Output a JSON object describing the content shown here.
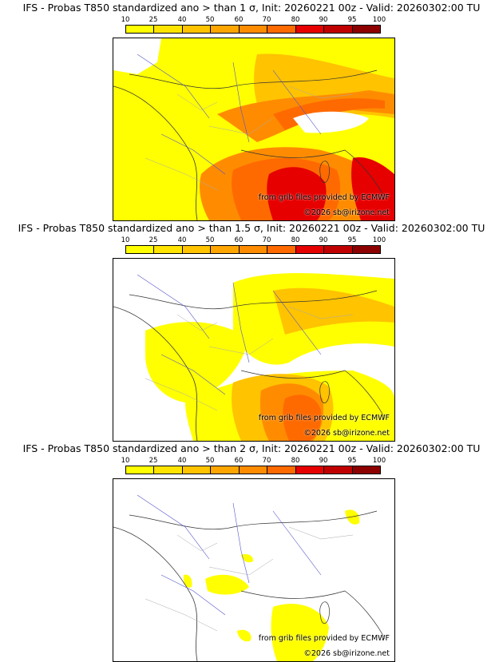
{
  "legend": {
    "ticks": [
      "10",
      "25",
      "40",
      "50",
      "60",
      "70",
      "80",
      "90",
      "95",
      "100"
    ],
    "colors": [
      "#ffff00",
      "#ffe400",
      "#ffc300",
      "#ffa500",
      "#ff8c00",
      "#ff6a00",
      "#e60000",
      "#c00000",
      "#8c0000"
    ]
  },
  "credit": {
    "grib": "from grib files provided by ECMWF",
    "copyright": "©2026 sb@irizone.net"
  },
  "panels": [
    {
      "title": "IFS - Probas T850  standardized ano > than 1 σ, Init: 20260221 00z - Valid: 20260302:00 TU"
    },
    {
      "title": "IFS - Probas T850  standardized ano > than 1.5 σ, Init: 20260221 00z - Valid: 20260302:00 TU"
    },
    {
      "title": "IFS - Probas T850  standardized ano > than 2 σ, Init: 20260221 00z - Valid: 20260302:00 TU"
    }
  ]
}
